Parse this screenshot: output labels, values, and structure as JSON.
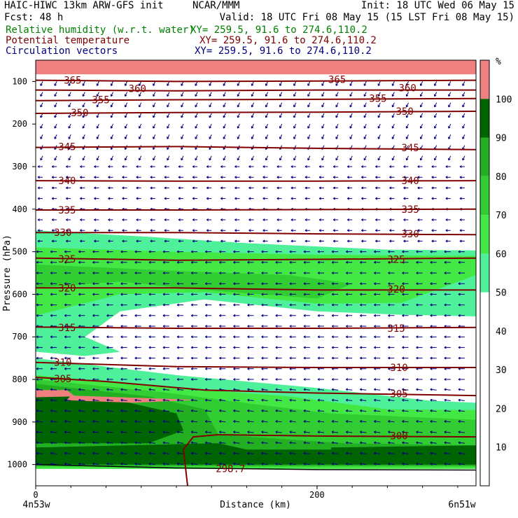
{
  "header": {
    "line1_left": "HAIC-HIWC 13km ARW-GFS init",
    "line1_mid": "NCAR/MMM",
    "line1_right": "Init: 18 UTC Wed 06 May 15",
    "line2_left": "Fcst:   48 h",
    "line2_right": "Valid: 18 UTC Fri 08 May 15 (15 LST Fri 08 May 15)",
    "fields": [
      {
        "label": "Relative humidity (w.r.t. water)",
        "xy": "XY= 259.5, 91.6 to 274.6,110.2",
        "color": "#008000"
      },
      {
        "label": "Potential temperature",
        "xy": "XY= 259.5, 91.6 to 274.6,110.2",
        "color": "#800000"
      },
      {
        "label": "Circulation vectors",
        "xy": "XY= 259.5, 91.6 to 274.6,110.2",
        "color": "#000080"
      }
    ]
  },
  "chart_data": {
    "type": "cross-section",
    "ylabel": "Pressure (hPa)",
    "xlabel": "Distance (km)",
    "y_ticks": [
      100,
      200,
      300,
      400,
      500,
      600,
      700,
      800,
      900,
      1000
    ],
    "ylim": [
      1050,
      50
    ],
    "x_ticks": [
      0,
      200
    ],
    "xlim": [
      0,
      313
    ],
    "x_left_label": "4n53w",
    "x_right_label": "6n51w",
    "colorbar": {
      "unit": "%",
      "levels": [
        10,
        20,
        30,
        40,
        50,
        60,
        70,
        80,
        90,
        100
      ],
      "bins": [
        {
          "from": 100,
          "to": 110,
          "color": "#f08080"
        },
        {
          "from": 90,
          "to": 100,
          "color": "#006400"
        },
        {
          "from": 80,
          "to": 90,
          "color": "#22b022"
        },
        {
          "from": 70,
          "to": 80,
          "color": "#32cd32"
        },
        {
          "from": 60,
          "to": 70,
          "color": "#44e844"
        },
        {
          "from": 50,
          "to": 60,
          "color": "#4ef09a"
        },
        {
          "from": 0,
          "to": 50,
          "color": "#ffffff"
        }
      ]
    },
    "rh_regions": [
      {
        "value": 100,
        "color": "#f08080",
        "points": [
          [
            0,
            50
          ],
          [
            313,
            50
          ],
          [
            313,
            83
          ],
          [
            0,
            83
          ]
        ]
      },
      {
        "value": 55,
        "color": "#4ef09a",
        "points": [
          [
            0,
            450
          ],
          [
            80,
            465
          ],
          [
            150,
            480
          ],
          [
            250,
            495
          ],
          [
            313,
            497
          ],
          [
            313,
            652
          ],
          [
            260,
            648
          ],
          [
            200,
            640
          ],
          [
            120,
            612
          ],
          [
            60,
            640
          ],
          [
            35,
            700
          ],
          [
            60,
            735
          ],
          [
            35,
            745
          ],
          [
            0,
            735
          ]
        ]
      },
      {
        "value": 65,
        "color": "#44e844",
        "points": [
          [
            0,
            490
          ],
          [
            100,
            500
          ],
          [
            200,
            507
          ],
          [
            313,
            510
          ],
          [
            313,
            555
          ],
          [
            260,
            620
          ],
          [
            200,
            622
          ],
          [
            120,
            595
          ],
          [
            60,
            600
          ],
          [
            0,
            650
          ]
        ]
      },
      {
        "value": 75,
        "color": "#32cd32",
        "points": [
          [
            0,
            530
          ],
          [
            100,
            545
          ],
          [
            180,
            555
          ],
          [
            225,
            575
          ],
          [
            200,
            610
          ],
          [
            120,
            590
          ],
          [
            60,
            570
          ],
          [
            0,
            585
          ]
        ]
      },
      {
        "value": 55,
        "color": "#4ef09a",
        "points": [
          [
            0,
            750
          ],
          [
            100,
            790
          ],
          [
            200,
            820
          ],
          [
            280,
            850
          ],
          [
            313,
            855
          ],
          [
            313,
            1010
          ],
          [
            0,
            1010
          ]
        ]
      },
      {
        "value": 65,
        "color": "#44e844",
        "points": [
          [
            0,
            790
          ],
          [
            100,
            820
          ],
          [
            180,
            840
          ],
          [
            250,
            870
          ],
          [
            313,
            872
          ],
          [
            313,
            1010
          ],
          [
            0,
            1010
          ]
        ]
      },
      {
        "value": 75,
        "color": "#32cd32",
        "points": [
          [
            0,
            800
          ],
          [
            90,
            830
          ],
          [
            160,
            860
          ],
          [
            210,
            880
          ],
          [
            313,
            895
          ],
          [
            313,
            1005
          ],
          [
            0,
            1005
          ]
        ]
      },
      {
        "value": 85,
        "color": "#22b022",
        "points": [
          [
            0,
            810
          ],
          [
            80,
            840
          ],
          [
            120,
            870
          ],
          [
            130,
            930
          ],
          [
            220,
            950
          ],
          [
            313,
            955
          ],
          [
            313,
            1003
          ],
          [
            0,
            1003
          ]
        ]
      },
      {
        "value": 95,
        "color": "#006400",
        "points": [
          [
            0,
            830
          ],
          [
            60,
            850
          ],
          [
            100,
            880
          ],
          [
            105,
            920
          ],
          [
            80,
            950
          ],
          [
            0,
            950
          ]
        ]
      },
      {
        "value": 95,
        "color": "#006400",
        "points": [
          [
            0,
            960
          ],
          [
            130,
            950
          ],
          [
            150,
            965
          ],
          [
            313,
            965
          ],
          [
            313,
            1000
          ],
          [
            0,
            1000
          ]
        ]
      },
      {
        "value": 95,
        "color": "#006400",
        "points": [
          [
            210,
            960
          ],
          [
            313,
            955
          ],
          [
            313,
            1000
          ],
          [
            210,
            1000
          ]
        ]
      },
      {
        "value": 100,
        "color": "#f08080",
        "points": [
          [
            0,
            825
          ],
          [
            22,
            825
          ],
          [
            28,
            840
          ],
          [
            0,
            842
          ]
        ]
      },
      {
        "value": 100,
        "color": "#f08080",
        "points": [
          [
            25,
            838
          ],
          [
            115,
            848
          ],
          [
            70,
            855
          ],
          [
            22,
            849
          ]
        ]
      }
    ],
    "theta_contours": [
      {
        "value": 365,
        "points": [
          [
            0,
            97
          ],
          [
            100,
            100
          ],
          [
            200,
            99
          ],
          [
            313,
            97
          ]
        ],
        "labels": [
          [
            20,
            97
          ],
          [
            208,
            95
          ]
        ]
      },
      {
        "value": 360,
        "points": [
          [
            0,
            120
          ],
          [
            100,
            122
          ],
          [
            200,
            120
          ],
          [
            313,
            120
          ]
        ],
        "labels": [
          [
            66,
            117
          ],
          [
            258,
            115
          ]
        ]
      },
      {
        "value": 355,
        "points": [
          [
            0,
            145
          ],
          [
            100,
            143
          ],
          [
            200,
            142
          ],
          [
            313,
            140
          ]
        ],
        "labels": [
          [
            40,
            143
          ],
          [
            237,
            140
          ]
        ]
      },
      {
        "value": 350,
        "points": [
          [
            0,
            175
          ],
          [
            100,
            173
          ],
          [
            200,
            172
          ],
          [
            313,
            170
          ]
        ],
        "labels": [
          [
            25,
            173
          ],
          [
            256,
            170
          ]
        ]
      },
      {
        "value": 345,
        "points": [
          [
            0,
            255
          ],
          [
            100,
            253
          ],
          [
            200,
            257
          ],
          [
            313,
            260
          ]
        ],
        "labels": [
          [
            16,
            253
          ],
          [
            260,
            256
          ]
        ]
      },
      {
        "value": 340,
        "points": [
          [
            0,
            333
          ],
          [
            100,
            334
          ],
          [
            200,
            334
          ],
          [
            313,
            333
          ]
        ],
        "labels": [
          [
            16,
            333
          ],
          [
            260,
            333
          ]
        ]
      },
      {
        "value": 335,
        "points": [
          [
            0,
            402
          ],
          [
            100,
            402
          ],
          [
            200,
            401
          ],
          [
            313,
            400
          ]
        ],
        "labels": [
          [
            16,
            402
          ],
          [
            260,
            400
          ]
        ]
      },
      {
        "value": 330,
        "points": [
          [
            0,
            455
          ],
          [
            100,
            455
          ],
          [
            200,
            458
          ],
          [
            313,
            460
          ]
        ],
        "labels": [
          [
            13,
            455
          ],
          [
            260,
            458
          ]
        ]
      },
      {
        "value": 325,
        "points": [
          [
            0,
            515
          ],
          [
            100,
            520
          ],
          [
            200,
            518
          ],
          [
            313,
            515
          ]
        ],
        "labels": [
          [
            16,
            517
          ],
          [
            250,
            518
          ]
        ]
      },
      {
        "value": 320,
        "points": [
          [
            0,
            585
          ],
          [
            100,
            585
          ],
          [
            200,
            590
          ],
          [
            313,
            590
          ]
        ],
        "labels": [
          [
            16,
            585
          ],
          [
            250,
            588
          ]
        ]
      },
      {
        "value": 315,
        "points": [
          [
            0,
            677
          ],
          [
            100,
            680
          ],
          [
            200,
            680
          ],
          [
            313,
            678
          ]
        ],
        "labels": [
          [
            16,
            678
          ],
          [
            250,
            680
          ]
        ]
      },
      {
        "value": 310,
        "points": [
          [
            0,
            760
          ],
          [
            100,
            770
          ],
          [
            200,
            772
          ],
          [
            313,
            772
          ]
        ],
        "labels": [
          [
            13,
            760
          ],
          [
            252,
            772
          ]
        ]
      },
      {
        "value": 305,
        "points": [
          [
            0,
            795
          ],
          [
            50,
            805
          ],
          [
            120,
            825
          ],
          [
            200,
            832
          ],
          [
            313,
            838
          ]
        ],
        "labels": [
          [
            13,
            798
          ],
          [
            252,
            834
          ]
        ]
      },
      {
        "value": 300,
        "points": [
          [
            108,
            1050
          ],
          [
            105,
            965
          ],
          [
            112,
            935
          ],
          [
            130,
            930
          ],
          [
            200,
            933
          ],
          [
            313,
            935
          ]
        ],
        "labels": [
          [
            252,
            932
          ]
        ]
      },
      {
        "value": 298.7,
        "points": [],
        "labels": [
          [
            128,
            1010
          ]
        ]
      }
    ]
  }
}
